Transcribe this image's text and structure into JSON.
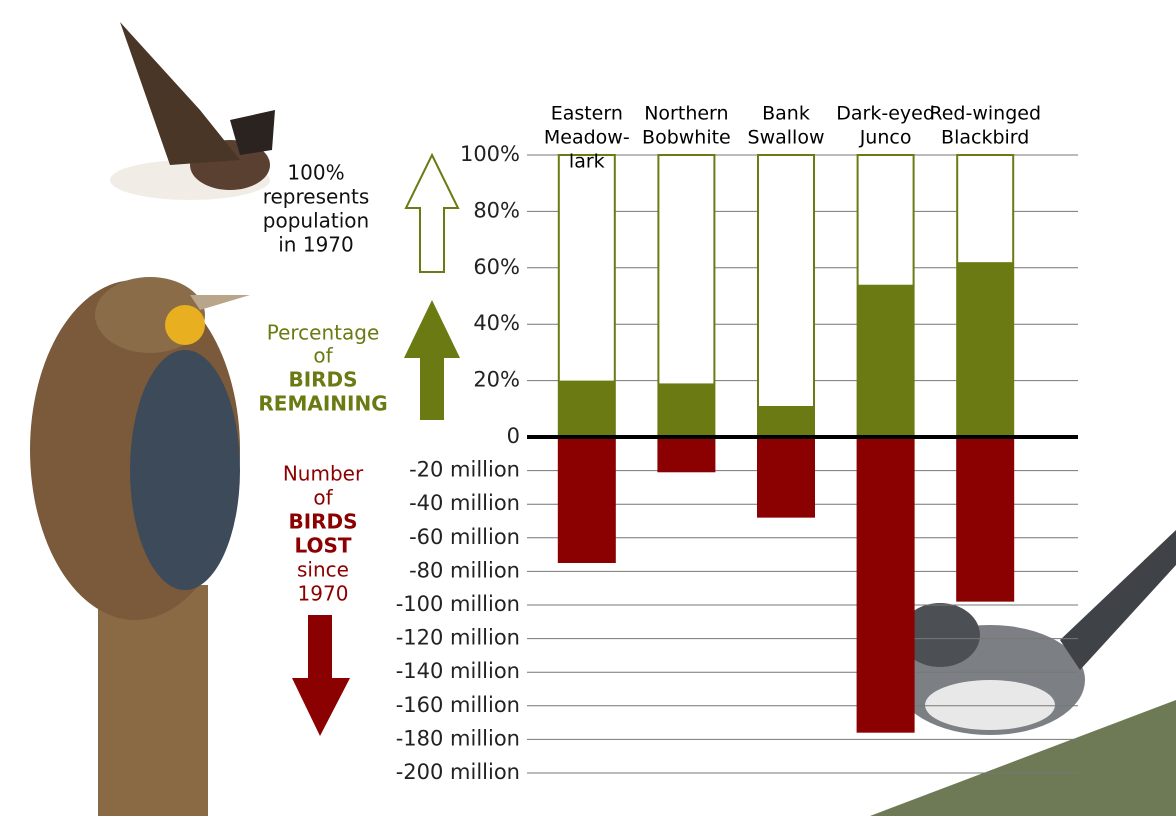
{
  "chart_data": {
    "type": "bar",
    "categories": [
      [
        "Eastern",
        "Meadow-",
        "lark"
      ],
      [
        "Northern",
        "Bobwhite"
      ],
      [
        "Bank",
        "Swallow"
      ],
      [
        "Dark-eyed",
        "Junco"
      ],
      [
        "Red-winged",
        "Blackbird"
      ]
    ],
    "series": [
      {
        "color": "#6b7a12",
        "values": [
          20,
          19,
          11,
          54,
          62
        ],
        "axis": "y"
      },
      {
        "color": "#8b0000",
        "values": [
          -75,
          -21,
          -48,
          -176,
          -98
        ],
        "axis": "y2"
      }
    ],
    "ylim": [
      0,
      100
    ],
    "yticks": [
      0,
      {
        "value": 20,
        "label": "20%"
      },
      {
        "value": 40,
        "label": "40%"
      },
      {
        "value": 60,
        "label": "60%"
      },
      {
        "value": 80,
        "label": "80%"
      },
      {
        "value": 100,
        "label": "100%"
      }
    ],
    "y2lim": [
      -200,
      0
    ],
    "y2ticks": [
      {
        "value": -20,
        "label": "-20 million"
      },
      {
        "value": -40,
        "label": "-40 million"
      },
      {
        "value": -60,
        "label": "-60 million"
      },
      {
        "value": -80,
        "label": "-80 million"
      },
      {
        "value": -100,
        "label": "-100 million"
      },
      {
        "value": -120,
        "label": "-120 million"
      },
      {
        "value": -140,
        "label": "-140 million"
      },
      {
        "value": -160,
        "label": "-160 million"
      },
      {
        "value": -180,
        "label": "-180 million"
      },
      {
        "value": -200,
        "label": "-200 million"
      }
    ],
    "grid": true,
    "annotations": {
      "baseline_note": [
        "100%",
        "represents",
        "population",
        "in 1970"
      ],
      "remaining_label": [
        "Percentage",
        "of",
        "BIRDS",
        "REMAINING"
      ],
      "lost_label": [
        "Number",
        "of",
        "BIRDS",
        "LOST",
        "since",
        "1970"
      ]
    }
  }
}
